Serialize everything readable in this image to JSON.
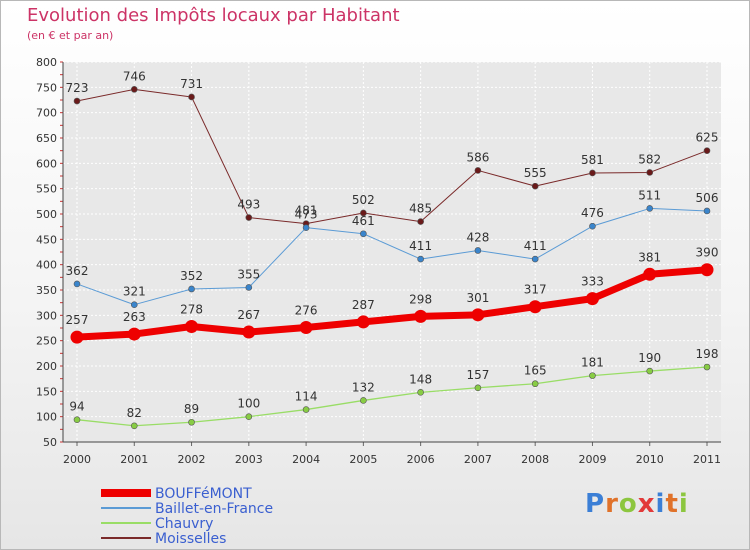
{
  "chart_data": {
    "type": "line",
    "title": "Evolution des Impôts locaux par Habitant",
    "subtitle": "(en € et par an)",
    "x": [
      "2000",
      "2001",
      "2002",
      "2003",
      "2004",
      "2005",
      "2006",
      "2007",
      "2008",
      "2009",
      "2010",
      "2011"
    ],
    "y_ticks": [
      "50",
      "100",
      "150",
      "200",
      "250",
      "300",
      "350",
      "400",
      "450",
      "500",
      "550",
      "600",
      "650",
      "700",
      "750",
      "800"
    ],
    "ylim": [
      50,
      800
    ],
    "grid": true,
    "legend_position": "bottom-left",
    "series": [
      {
        "name": "Moisselles",
        "color": "#7a2a2a",
        "labels": [
          "723",
          "746",
          "731",
          "493",
          "481",
          "502",
          "485",
          "586",
          "555",
          "581",
          "582",
          "625"
        ],
        "values": [
          723,
          746,
          731,
          493,
          481,
          502,
          485,
          586,
          555,
          581,
          582,
          625
        ]
      },
      {
        "name": "Baillet-en-France",
        "color": "#5b9bd5",
        "labels": [
          "362",
          "321",
          "352",
          "355",
          "473",
          "461",
          "411",
          "428",
          "411",
          "476",
          "511",
          "506"
        ],
        "values": [
          362,
          321,
          352,
          355,
          473,
          461,
          411,
          428,
          411,
          476,
          511,
          506
        ]
      },
      {
        "name": "Chauvry",
        "color": "#99dd66",
        "labels": [
          "94",
          "82",
          "89",
          "100",
          "114",
          "132",
          "148",
          "157",
          "165",
          "181",
          "190",
          "198"
        ],
        "values": [
          94,
          82,
          89,
          100,
          114,
          132,
          148,
          157,
          165,
          181,
          190,
          198
        ]
      },
      {
        "name": "BOUFFéMONT",
        "color": "#ee0000",
        "labels": [
          "257",
          "263",
          "278",
          "267",
          "276",
          "287",
          "298",
          "301",
          "317",
          "333",
          "381",
          "390"
        ],
        "values": [
          257,
          263,
          278,
          267,
          276,
          287,
          298,
          301,
          317,
          333,
          381,
          390
        ]
      }
    ],
    "legend": [
      {
        "name": "BOUFFéMONT",
        "color": "#ee0000"
      },
      {
        "name": "Baillet-en-France",
        "color": "#5b9bd5"
      },
      {
        "name": "Chauvry",
        "color": "#99dd66"
      },
      {
        "name": "Moisselles",
        "color": "#7a2a2a"
      }
    ]
  },
  "branding": {
    "logo_text": "Proxiti",
    "logo_letters": [
      "P",
      "r",
      "o",
      "x",
      "i",
      "t",
      "i"
    ]
  }
}
